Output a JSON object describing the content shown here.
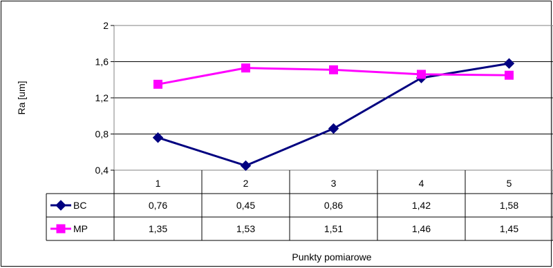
{
  "chart_data": {
    "type": "line",
    "title": "",
    "xlabel": "Punkty pomiarowe",
    "ylabel": "Ra [um]",
    "ylim": [
      0.4,
      2
    ],
    "yticks": [
      "0,4",
      "0,8",
      "1,2",
      "1,6",
      "2"
    ],
    "ytick_values": [
      0.4,
      0.8,
      1.2,
      1.6,
      2.0
    ],
    "categories": [
      "1",
      "2",
      "3",
      "4",
      "5"
    ],
    "grid": "horizontal",
    "legend": "data-table",
    "series": [
      {
        "name": "BC",
        "values": [
          0.76,
          0.45,
          0.86,
          1.42,
          1.58
        ],
        "labels": [
          "0,76",
          "0,45",
          "0,86",
          "1,42",
          "1,58"
        ],
        "color": "#000080",
        "marker": "diamond"
      },
      {
        "name": "MP",
        "values": [
          1.35,
          1.53,
          1.51,
          1.46,
          1.45
        ],
        "labels": [
          "1,35",
          "1,53",
          "1,51",
          "1,46",
          "1,45"
        ],
        "color": "#FF00FF",
        "marker": "square"
      }
    ]
  }
}
